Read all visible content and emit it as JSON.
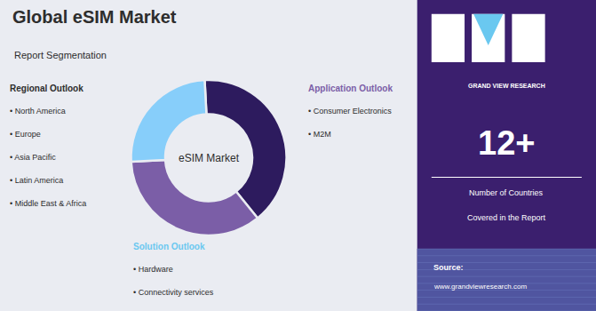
{
  "chart_data": {
    "type": "pie",
    "title": "Global eSIM Market",
    "subtitle": "Report Segmentation",
    "values": [
      40,
      35,
      25
    ],
    "colors": [
      "#2d1b5e",
      "#7b5ea7",
      "#87cefa"
    ],
    "background": "#eaecf2",
    "text_color": "#2d2d2d",
    "center_label": "eSIM Market",
    "lists": [
      {
        "title": "Regional Outlook",
        "color": "#2d2d2d",
        "items": [
          "• North America",
          "• Europe",
          "• Asia Pacific",
          "• Latin America",
          "• Middle East & Africa"
        ]
      },
      {
        "title": "Application Outlook",
        "color": "#7b5ea7",
        "items": [
          "• Consumer Electronics",
          "• M2M"
        ]
      },
      {
        "title": "Solution Outlook",
        "color": "#6ac8f0",
        "items": [
          "• Hardware",
          "• Connectivity services"
        ]
      }
    ],
    "panel": {
      "color": "#3b1f6e",
      "text_color": "#ffffff",
      "logo_color": "#6ac8f0",
      "brand": "GRAND VIEW RESEARCH",
      "stat": "12+",
      "stat_labels": [
        "Number of Countries",
        "Covered in the Report"
      ],
      "source": "Source:",
      "url": "www.grandviewresearch.com",
      "grid_color": "#5055a0",
      "grid_line_color": "#7788cc"
    }
  }
}
